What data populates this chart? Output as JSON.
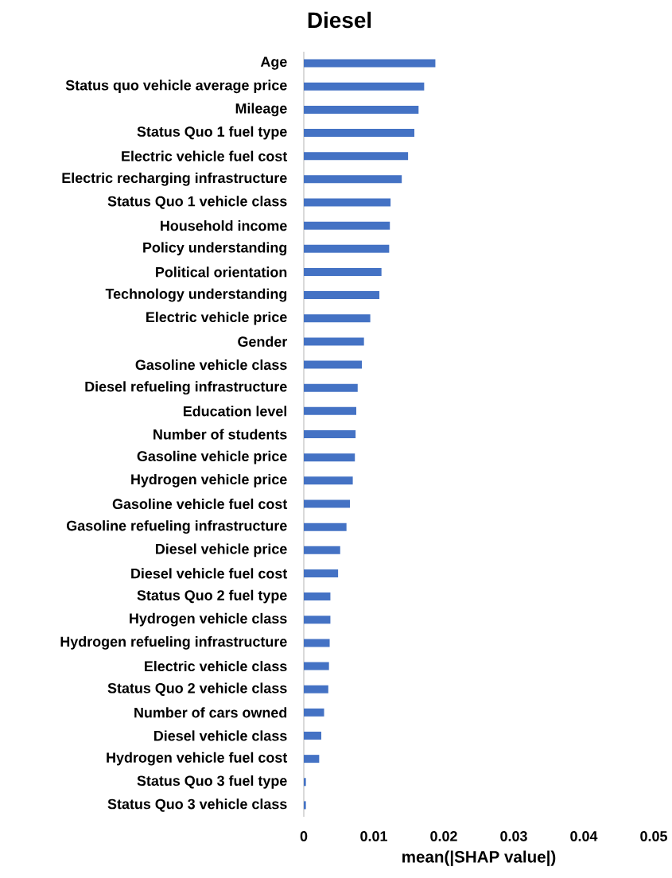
{
  "chart_data": {
    "type": "bar",
    "orientation": "horizontal",
    "title": "Diesel",
    "xlabel": "mean(|SHAP value|)",
    "categories": [
      "Age",
      "Status quo vehicle average price",
      "Mileage",
      "Status Quo 1 fuel type",
      "Electric vehicle fuel cost",
      "Electric recharging infrastructure",
      "Status Quo 1 vehicle class",
      "Household income",
      "Policy understanding",
      "Political orientation",
      "Technology understanding",
      "Electric vehicle price",
      "Gender",
      "Gasoline vehicle class",
      "Diesel refueling infrastructure",
      "Education level",
      "Number of students",
      "Gasoline vehicle price",
      "Hydrogen vehicle price",
      "Gasoline vehicle fuel cost",
      "Gasoline refueling infrastructure",
      "Diesel vehicle price",
      "Diesel vehicle fuel cost",
      "Status Quo 2 fuel type",
      "Hydrogen vehicle class",
      "Hydrogen refueling infrastructure",
      "Electric vehicle class",
      "Status Quo 2 vehicle class",
      "Number of cars owned",
      "Diesel vehicle class",
      "Hydrogen vehicle fuel cost",
      "Status Quo 3 fuel type",
      "Status Quo 3 vehicle class"
    ],
    "values": [
      0.0188,
      0.0172,
      0.0164,
      0.0158,
      0.0149,
      0.014,
      0.0124,
      0.0123,
      0.0122,
      0.0111,
      0.0108,
      0.0095,
      0.0086,
      0.0083,
      0.0077,
      0.0075,
      0.0074,
      0.0073,
      0.007,
      0.0066,
      0.0061,
      0.0052,
      0.0049,
      0.0038,
      0.0038,
      0.0037,
      0.0036,
      0.0035,
      0.0029,
      0.0025,
      0.0022,
      0.0003,
      0.0003
    ],
    "color": "#4472c4",
    "xlim": [
      0,
      0.05
    ],
    "xticks": [
      0,
      0.01,
      0.02,
      0.03,
      0.04,
      0.05
    ]
  }
}
